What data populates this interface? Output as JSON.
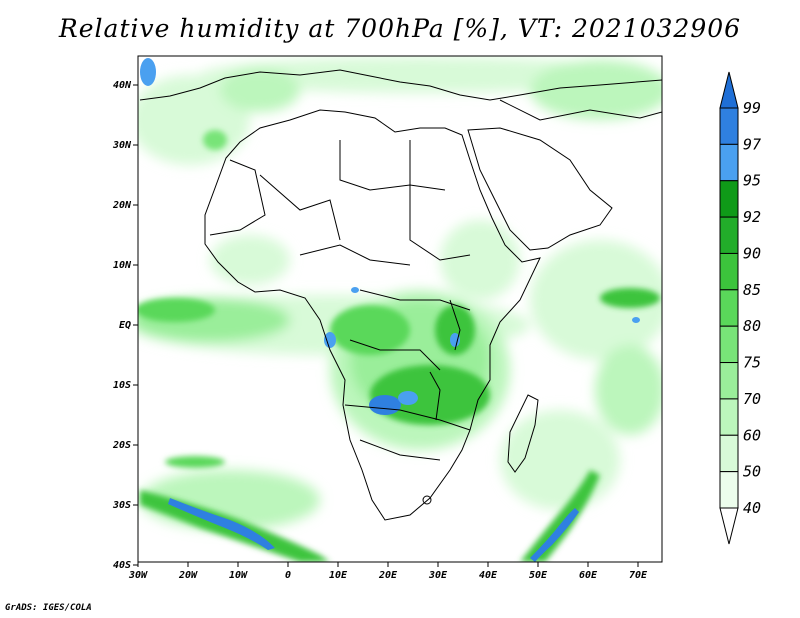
{
  "title": "Relative humidity at 700hPa [%], VT: 2021032906",
  "credit": "GrADS: IGES/COLA",
  "map": {
    "lon_range": [
      -30,
      75
    ],
    "lat_range": [
      -40,
      45
    ],
    "lon_ticks": [
      "30W",
      "20W",
      "10W",
      "0",
      "10E",
      "20E",
      "30E",
      "40E",
      "50E",
      "60E",
      "70E"
    ],
    "lat_ticks": [
      "40N",
      "30N",
      "20N",
      "10N",
      "EQ",
      "10S",
      "20S",
      "30S",
      "40S"
    ]
  },
  "colorbar": {
    "levels": [
      "99",
      "97",
      "95",
      "92",
      "90",
      "85",
      "80",
      "75",
      "70",
      "60",
      "50",
      "40"
    ],
    "colors": [
      "#1f6fd6",
      "#2f80e0",
      "#4aa0f0",
      "#0f9a18",
      "#22ad2a",
      "#3cc43c",
      "#5ad85a",
      "#78e478",
      "#9aee9a",
      "#bcf6bc",
      "#d8fad8",
      "#ecfdec"
    ]
  }
}
